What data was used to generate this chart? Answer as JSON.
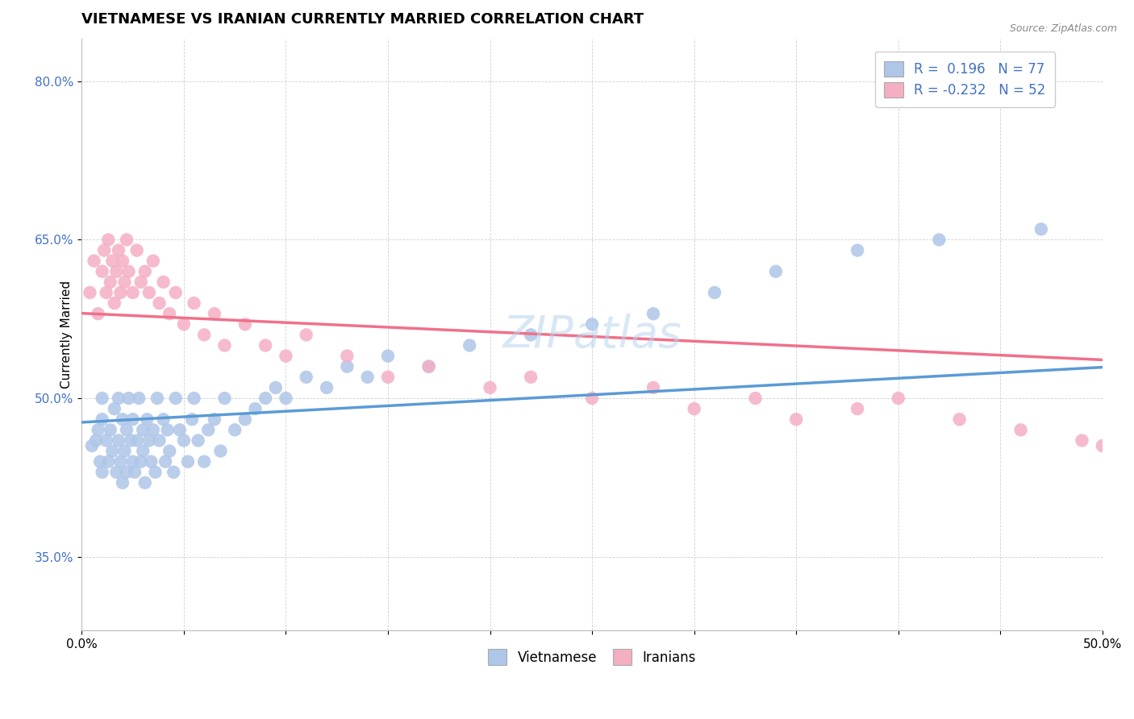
{
  "title": "VIETNAMESE VS IRANIAN CURRENTLY MARRIED CORRELATION CHART",
  "source_text": "Source: ZipAtlas.com",
  "ylabel": "Currently Married",
  "xlim": [
    0.0,
    0.5
  ],
  "ylim": [
    0.28,
    0.84
  ],
  "xtick_positions": [
    0.0,
    0.05,
    0.1,
    0.15,
    0.2,
    0.25,
    0.3,
    0.35,
    0.4,
    0.45,
    0.5
  ],
  "xtick_labels": [
    "0.0%",
    "",
    "",
    "",
    "",
    "",
    "",
    "",
    "",
    "",
    "50.0%"
  ],
  "ytick_values": [
    0.35,
    0.5,
    0.65,
    0.8
  ],
  "ytick_labels": [
    "35.0%",
    "50.0%",
    "65.0%",
    "80.0%"
  ],
  "r_viet": 0.196,
  "n_viet": 77,
  "r_iran": -0.232,
  "n_iran": 52,
  "color_viet": "#aec6e8",
  "color_iran": "#f4afc3",
  "color_viet_line": "#5b9bd5",
  "color_iran_line": "#f0708a",
  "color_text_blue": "#4472c4",
  "background_color": "#ffffff",
  "title_fontsize": 13,
  "axis_label_fontsize": 11,
  "tick_fontsize": 11,
  "viet_x": [
    0.005,
    0.007,
    0.008,
    0.009,
    0.01,
    0.01,
    0.01,
    0.012,
    0.013,
    0.014,
    0.015,
    0.016,
    0.017,
    0.018,
    0.018,
    0.019,
    0.02,
    0.02,
    0.021,
    0.022,
    0.022,
    0.023,
    0.024,
    0.025,
    0.025,
    0.026,
    0.027,
    0.028,
    0.029,
    0.03,
    0.03,
    0.031,
    0.032,
    0.033,
    0.034,
    0.035,
    0.036,
    0.037,
    0.038,
    0.04,
    0.041,
    0.042,
    0.043,
    0.045,
    0.046,
    0.048,
    0.05,
    0.052,
    0.054,
    0.055,
    0.057,
    0.06,
    0.062,
    0.065,
    0.068,
    0.07,
    0.075,
    0.08,
    0.085,
    0.09,
    0.095,
    0.1,
    0.11,
    0.12,
    0.13,
    0.14,
    0.15,
    0.17,
    0.19,
    0.22,
    0.25,
    0.28,
    0.31,
    0.34,
    0.38,
    0.42,
    0.47
  ],
  "viet_y": [
    0.455,
    0.46,
    0.47,
    0.44,
    0.48,
    0.43,
    0.5,
    0.46,
    0.44,
    0.47,
    0.45,
    0.49,
    0.43,
    0.46,
    0.5,
    0.44,
    0.48,
    0.42,
    0.45,
    0.47,
    0.43,
    0.5,
    0.46,
    0.44,
    0.48,
    0.43,
    0.46,
    0.5,
    0.44,
    0.47,
    0.45,
    0.42,
    0.48,
    0.46,
    0.44,
    0.47,
    0.43,
    0.5,
    0.46,
    0.48,
    0.44,
    0.47,
    0.45,
    0.43,
    0.5,
    0.47,
    0.46,
    0.44,
    0.48,
    0.5,
    0.46,
    0.44,
    0.47,
    0.48,
    0.45,
    0.5,
    0.47,
    0.48,
    0.49,
    0.5,
    0.51,
    0.5,
    0.52,
    0.51,
    0.53,
    0.52,
    0.54,
    0.53,
    0.55,
    0.56,
    0.57,
    0.58,
    0.6,
    0.62,
    0.64,
    0.65,
    0.66
  ],
  "iran_x": [
    0.004,
    0.006,
    0.008,
    0.01,
    0.011,
    0.012,
    0.013,
    0.014,
    0.015,
    0.016,
    0.017,
    0.018,
    0.019,
    0.02,
    0.021,
    0.022,
    0.023,
    0.025,
    0.027,
    0.029,
    0.031,
    0.033,
    0.035,
    0.038,
    0.04,
    0.043,
    0.046,
    0.05,
    0.055,
    0.06,
    0.065,
    0.07,
    0.08,
    0.09,
    0.1,
    0.11,
    0.13,
    0.15,
    0.17,
    0.2,
    0.22,
    0.25,
    0.28,
    0.3,
    0.33,
    0.35,
    0.38,
    0.4,
    0.43,
    0.46,
    0.49,
    0.5
  ],
  "iran_y": [
    0.6,
    0.63,
    0.58,
    0.62,
    0.64,
    0.6,
    0.65,
    0.61,
    0.63,
    0.59,
    0.62,
    0.64,
    0.6,
    0.63,
    0.61,
    0.65,
    0.62,
    0.6,
    0.64,
    0.61,
    0.62,
    0.6,
    0.63,
    0.59,
    0.61,
    0.58,
    0.6,
    0.57,
    0.59,
    0.56,
    0.58,
    0.55,
    0.57,
    0.55,
    0.54,
    0.56,
    0.54,
    0.52,
    0.53,
    0.51,
    0.52,
    0.5,
    0.51,
    0.49,
    0.5,
    0.48,
    0.49,
    0.5,
    0.48,
    0.47,
    0.46,
    0.455
  ],
  "watermark_text": "ZIPatlas",
  "legend1_text": "R =  0.196   N = 77",
  "legend2_text": "R = -0.232   N = 52"
}
